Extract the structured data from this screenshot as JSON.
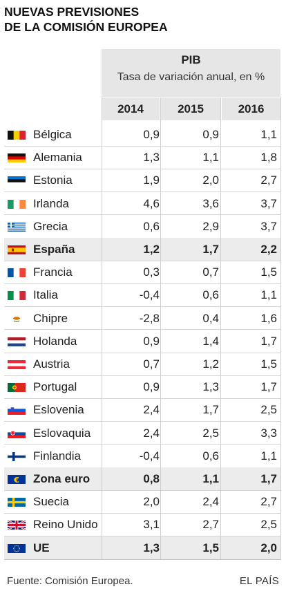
{
  "title": {
    "line1": "NUEVAS PREVISIONES",
    "line2": "DE LA COMISIÓN EUROPEA"
  },
  "header": {
    "indicator": "PIB",
    "subtitle": "Tasa de variación anual, en %",
    "years": [
      "2014",
      "2015",
      "2016"
    ]
  },
  "chart_data": {
    "type": "table",
    "title": "NUEVAS PREVISIONES DE LA COMISIÓN EUROPEA",
    "columns": [
      "2014",
      "2015",
      "2016"
    ],
    "rows": [
      {
        "name": "Bélgica",
        "flag": "belgium",
        "values": [
          "0,9",
          "0,9",
          "1,1"
        ],
        "highlight": false
      },
      {
        "name": "Alemania",
        "flag": "germany",
        "values": [
          "1,3",
          "1,1",
          "1,8"
        ],
        "highlight": false
      },
      {
        "name": "Estonia",
        "flag": "estonia",
        "values": [
          "1,9",
          "2,0",
          "2,7"
        ],
        "highlight": false
      },
      {
        "name": "Irlanda",
        "flag": "ireland",
        "values": [
          "4,6",
          "3,6",
          "3,7"
        ],
        "highlight": false
      },
      {
        "name": "Grecia",
        "flag": "greece",
        "values": [
          "0,6",
          "2,9",
          "3,7"
        ],
        "highlight": false
      },
      {
        "name": "España",
        "flag": "spain",
        "values": [
          "1,2",
          "1,7",
          "2,2"
        ],
        "highlight": true
      },
      {
        "name": "Francia",
        "flag": "france",
        "values": [
          "0,3",
          "0,7",
          "1,5"
        ],
        "highlight": false
      },
      {
        "name": "Italia",
        "flag": "italy",
        "values": [
          "-0,4",
          "0,6",
          "1,1"
        ],
        "highlight": false
      },
      {
        "name": "Chipre",
        "flag": "cyprus",
        "values": [
          "-2,8",
          "0,4",
          "1,6"
        ],
        "highlight": false
      },
      {
        "name": "Holanda",
        "flag": "netherlands",
        "values": [
          "0,9",
          "1,4",
          "1,7"
        ],
        "highlight": false
      },
      {
        "name": "Austria",
        "flag": "austria",
        "values": [
          "0,7",
          "1,2",
          "1,5"
        ],
        "highlight": false
      },
      {
        "name": "Portugal",
        "flag": "portugal",
        "values": [
          "0,9",
          "1,3",
          "1,7"
        ],
        "highlight": false
      },
      {
        "name": "Eslovenia",
        "flag": "slovenia",
        "values": [
          "2,4",
          "1,7",
          "2,5"
        ],
        "highlight": false
      },
      {
        "name": "Eslovaquia",
        "flag": "slovakia",
        "values": [
          "2,4",
          "2,5",
          "3,3"
        ],
        "highlight": false
      },
      {
        "name": "Finlandia",
        "flag": "finland",
        "values": [
          "-0,4",
          "0,6",
          "1,1"
        ],
        "highlight": false
      },
      {
        "name": "Zona euro",
        "flag": "euro",
        "values": [
          "0,8",
          "1,1",
          "1,7"
        ],
        "highlight": true
      },
      {
        "name": "Suecia",
        "flag": "sweden",
        "values": [
          "2,0",
          "2,4",
          "2,7"
        ],
        "highlight": false
      },
      {
        "name": "Reino Unido",
        "flag": "uk",
        "values": [
          "3,1",
          "2,7",
          "2,5"
        ],
        "highlight": false
      },
      {
        "name": "UE",
        "flag": "eu",
        "values": [
          "1,3",
          "1,5",
          "2,0"
        ],
        "highlight": true
      }
    ]
  },
  "footer": {
    "source": "Fuente: Comisión Europea.",
    "brand": "EL PAÍS"
  },
  "colors": {
    "header_bg": "#e6e6e6",
    "highlight_bg": "#ececec",
    "separator": "#d4d4d4"
  }
}
